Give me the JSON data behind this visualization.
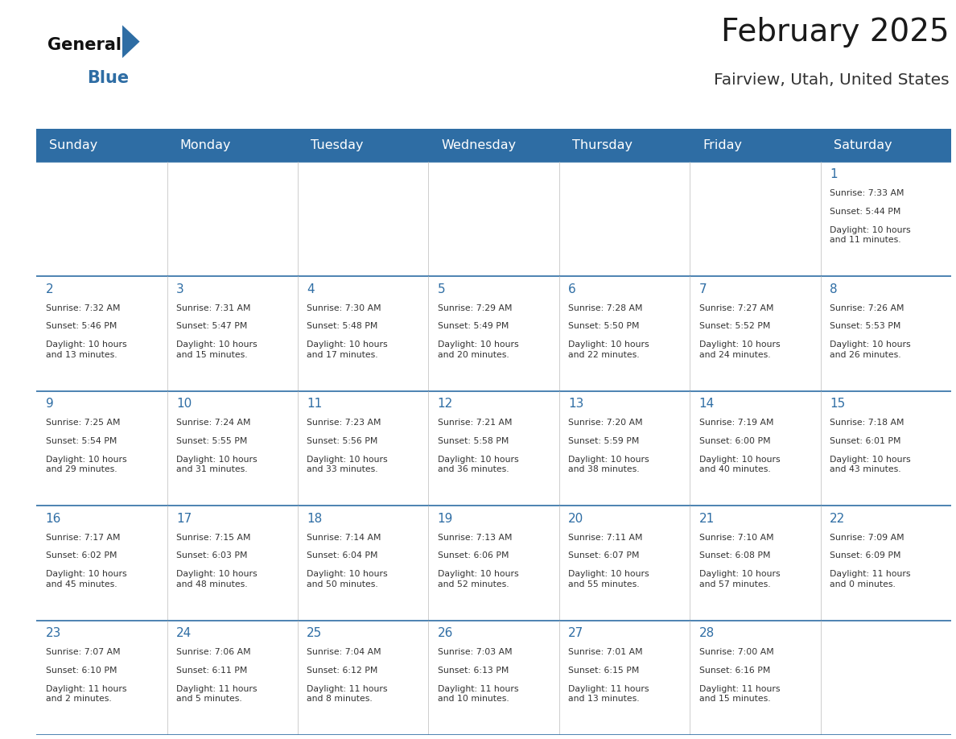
{
  "title": "February 2025",
  "subtitle": "Fairview, Utah, United States",
  "header_bg": "#2E6DA4",
  "header_text_color": "#FFFFFF",
  "cell_bg": "#FFFFFF",
  "border_color": "#2E6DA4",
  "day_headers": [
    "Sunday",
    "Monday",
    "Tuesday",
    "Wednesday",
    "Thursday",
    "Friday",
    "Saturday"
  ],
  "title_color": "#1a1a1a",
  "subtitle_color": "#333333",
  "day_number_color": "#2E6DA4",
  "cell_text_color": "#333333",
  "calendar_data": [
    [
      null,
      null,
      null,
      null,
      null,
      null,
      {
        "day": 1,
        "sunrise": "7:33 AM",
        "sunset": "5:44 PM",
        "daylight": "10 hours\nand 11 minutes."
      }
    ],
    [
      {
        "day": 2,
        "sunrise": "7:32 AM",
        "sunset": "5:46 PM",
        "daylight": "10 hours\nand 13 minutes."
      },
      {
        "day": 3,
        "sunrise": "7:31 AM",
        "sunset": "5:47 PM",
        "daylight": "10 hours\nand 15 minutes."
      },
      {
        "day": 4,
        "sunrise": "7:30 AM",
        "sunset": "5:48 PM",
        "daylight": "10 hours\nand 17 minutes."
      },
      {
        "day": 5,
        "sunrise": "7:29 AM",
        "sunset": "5:49 PM",
        "daylight": "10 hours\nand 20 minutes."
      },
      {
        "day": 6,
        "sunrise": "7:28 AM",
        "sunset": "5:50 PM",
        "daylight": "10 hours\nand 22 minutes."
      },
      {
        "day": 7,
        "sunrise": "7:27 AM",
        "sunset": "5:52 PM",
        "daylight": "10 hours\nand 24 minutes."
      },
      {
        "day": 8,
        "sunrise": "7:26 AM",
        "sunset": "5:53 PM",
        "daylight": "10 hours\nand 26 minutes."
      }
    ],
    [
      {
        "day": 9,
        "sunrise": "7:25 AM",
        "sunset": "5:54 PM",
        "daylight": "10 hours\nand 29 minutes."
      },
      {
        "day": 10,
        "sunrise": "7:24 AM",
        "sunset": "5:55 PM",
        "daylight": "10 hours\nand 31 minutes."
      },
      {
        "day": 11,
        "sunrise": "7:23 AM",
        "sunset": "5:56 PM",
        "daylight": "10 hours\nand 33 minutes."
      },
      {
        "day": 12,
        "sunrise": "7:21 AM",
        "sunset": "5:58 PM",
        "daylight": "10 hours\nand 36 minutes."
      },
      {
        "day": 13,
        "sunrise": "7:20 AM",
        "sunset": "5:59 PM",
        "daylight": "10 hours\nand 38 minutes."
      },
      {
        "day": 14,
        "sunrise": "7:19 AM",
        "sunset": "6:00 PM",
        "daylight": "10 hours\nand 40 minutes."
      },
      {
        "day": 15,
        "sunrise": "7:18 AM",
        "sunset": "6:01 PM",
        "daylight": "10 hours\nand 43 minutes."
      }
    ],
    [
      {
        "day": 16,
        "sunrise": "7:17 AM",
        "sunset": "6:02 PM",
        "daylight": "10 hours\nand 45 minutes."
      },
      {
        "day": 17,
        "sunrise": "7:15 AM",
        "sunset": "6:03 PM",
        "daylight": "10 hours\nand 48 minutes."
      },
      {
        "day": 18,
        "sunrise": "7:14 AM",
        "sunset": "6:04 PM",
        "daylight": "10 hours\nand 50 minutes."
      },
      {
        "day": 19,
        "sunrise": "7:13 AM",
        "sunset": "6:06 PM",
        "daylight": "10 hours\nand 52 minutes."
      },
      {
        "day": 20,
        "sunrise": "7:11 AM",
        "sunset": "6:07 PM",
        "daylight": "10 hours\nand 55 minutes."
      },
      {
        "day": 21,
        "sunrise": "7:10 AM",
        "sunset": "6:08 PM",
        "daylight": "10 hours\nand 57 minutes."
      },
      {
        "day": 22,
        "sunrise": "7:09 AM",
        "sunset": "6:09 PM",
        "daylight": "11 hours\nand 0 minutes."
      }
    ],
    [
      {
        "day": 23,
        "sunrise": "7:07 AM",
        "sunset": "6:10 PM",
        "daylight": "11 hours\nand 2 minutes."
      },
      {
        "day": 24,
        "sunrise": "7:06 AM",
        "sunset": "6:11 PM",
        "daylight": "11 hours\nand 5 minutes."
      },
      {
        "day": 25,
        "sunrise": "7:04 AM",
        "sunset": "6:12 PM",
        "daylight": "11 hours\nand 8 minutes."
      },
      {
        "day": 26,
        "sunrise": "7:03 AM",
        "sunset": "6:13 PM",
        "daylight": "11 hours\nand 10 minutes."
      },
      {
        "day": 27,
        "sunrise": "7:01 AM",
        "sunset": "6:15 PM",
        "daylight": "11 hours\nand 13 minutes."
      },
      {
        "day": 28,
        "sunrise": "7:00 AM",
        "sunset": "6:16 PM",
        "daylight": "11 hours\nand 15 minutes."
      },
      null
    ]
  ]
}
